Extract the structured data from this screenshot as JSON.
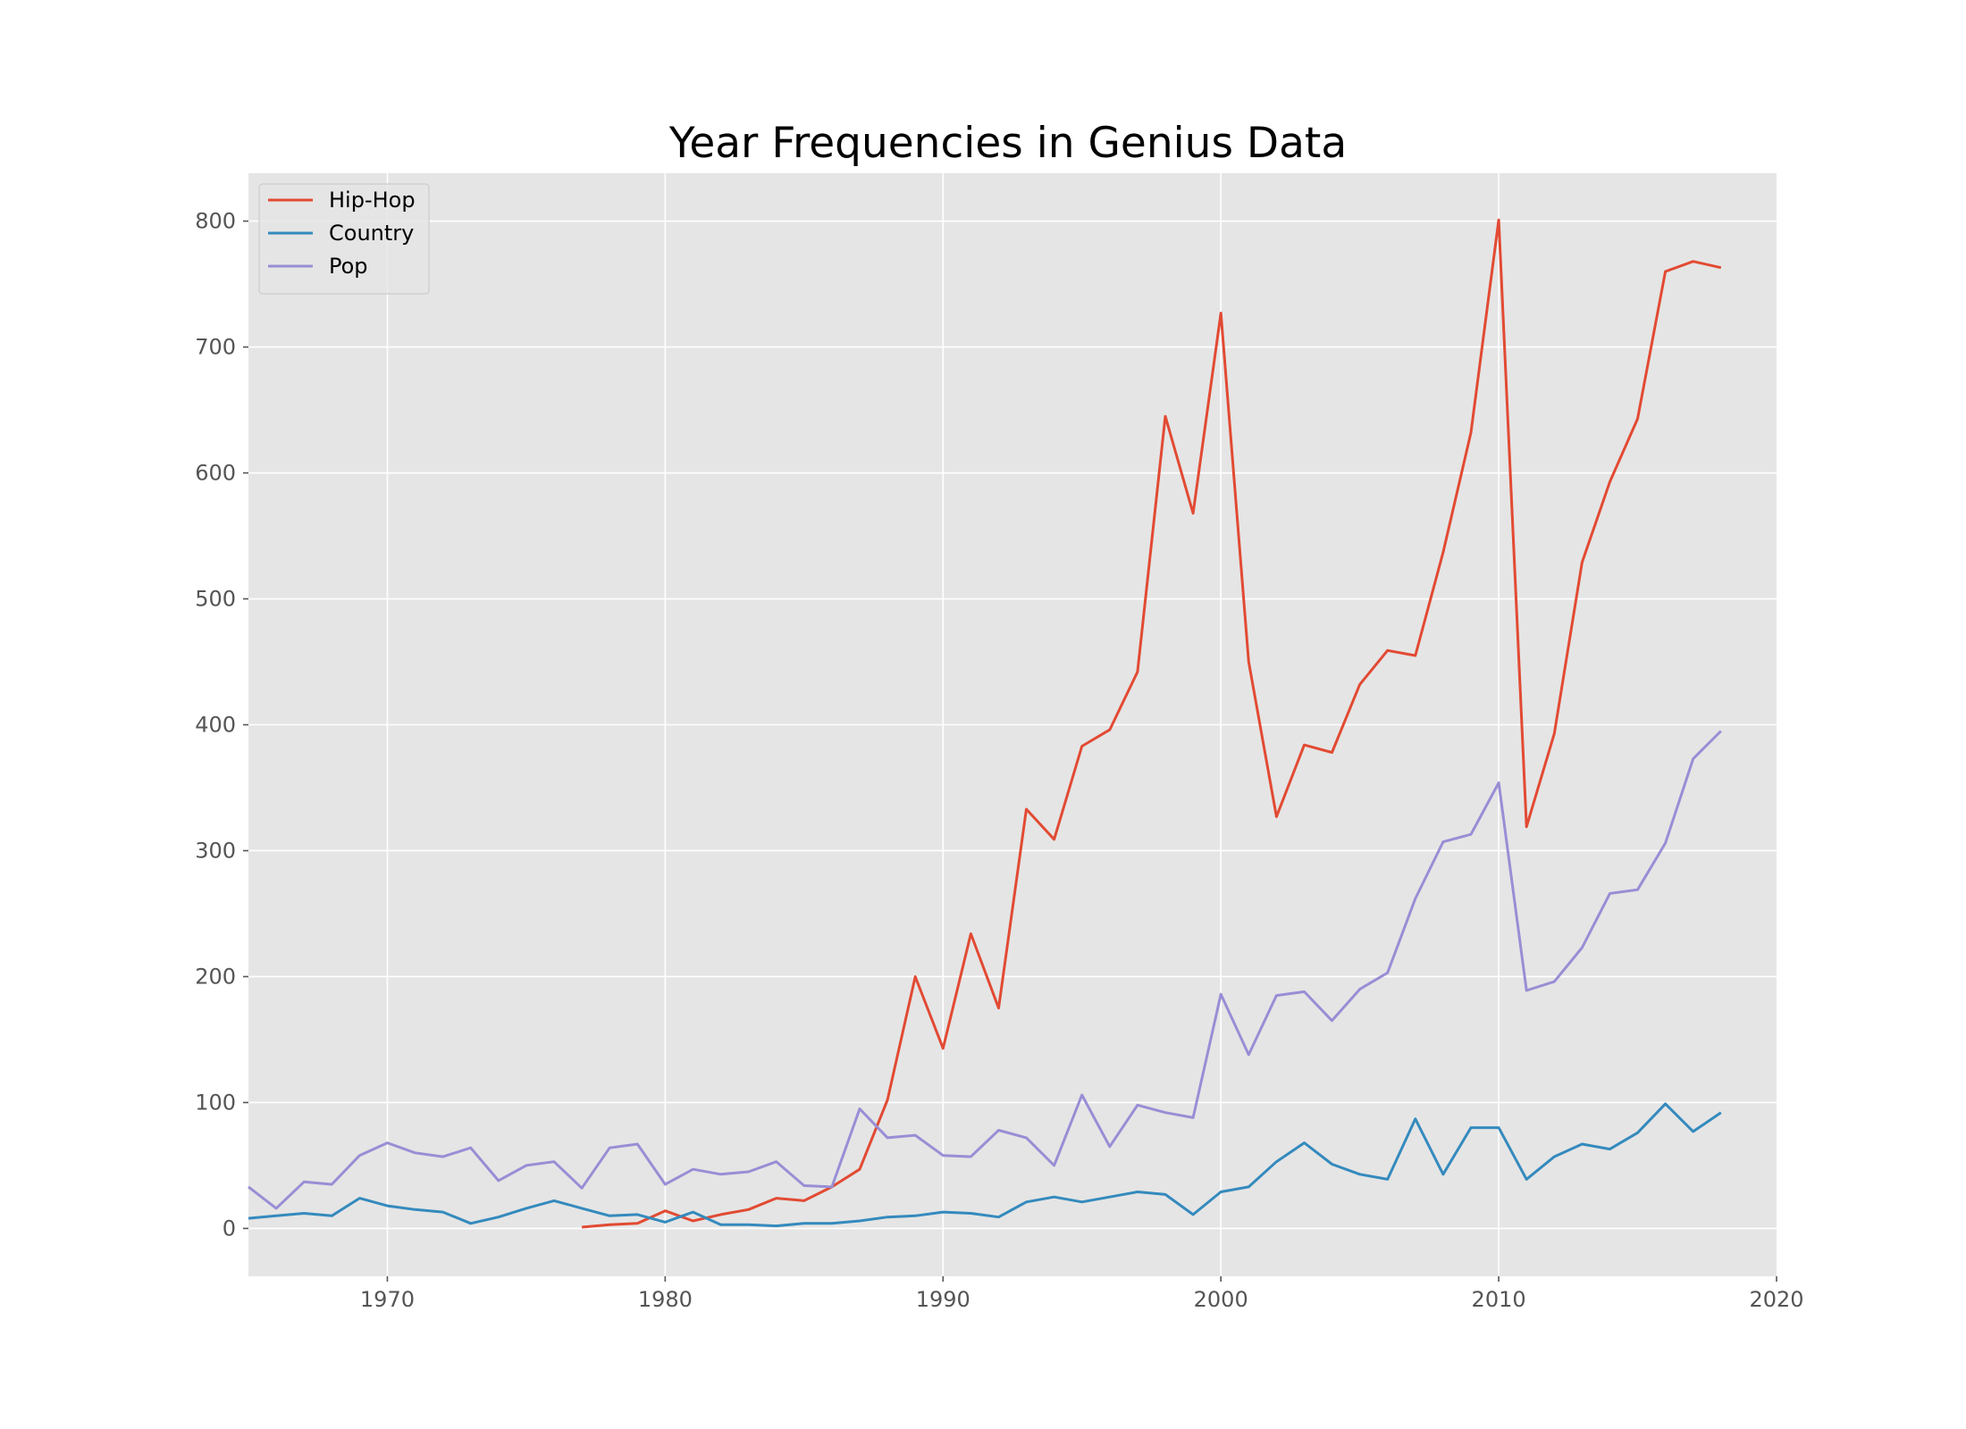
{
  "chart_data": {
    "type": "line",
    "title": "Year Frequencies in Genius Data",
    "xlabel": "",
    "ylabel": "",
    "xlim": [
      1965,
      2020
    ],
    "ylim": [
      -38,
      838
    ],
    "x_ticks": [
      1970,
      1980,
      1990,
      2000,
      2010,
      2020
    ],
    "y_ticks": [
      0,
      100,
      200,
      300,
      400,
      500,
      600,
      700,
      800
    ],
    "grid": true,
    "legend_position": "top-left",
    "series": [
      {
        "name": "Hip-Hop",
        "color": "#E24A33",
        "x": [
          1977,
          1978,
          1979,
          1980,
          1981,
          1982,
          1983,
          1984,
          1985,
          1986,
          1987,
          1988,
          1989,
          1990,
          1991,
          1992,
          1993,
          1994,
          1995,
          1996,
          1997,
          1998,
          1999,
          2000,
          2001,
          2002,
          2003,
          2004,
          2005,
          2006,
          2007,
          2008,
          2009,
          2010,
          2011,
          2012,
          2013,
          2014,
          2015,
          2016,
          2017,
          2018
        ],
        "y": [
          1,
          3,
          4,
          14,
          6,
          11,
          15,
          24,
          22,
          33,
          47,
          102,
          200,
          143,
          234,
          175,
          333,
          309,
          383,
          396,
          442,
          645,
          568,
          727,
          450,
          327,
          384,
          378,
          432,
          459,
          455,
          537,
          632,
          801,
          319,
          393,
          529,
          593,
          643,
          760,
          768,
          763
        ]
      },
      {
        "name": "Country",
        "color": "#348ABD",
        "x": [
          1965,
          1966,
          1967,
          1968,
          1969,
          1970,
          1971,
          1972,
          1973,
          1974,
          1975,
          1976,
          1977,
          1978,
          1979,
          1980,
          1981,
          1982,
          1983,
          1984,
          1985,
          1986,
          1987,
          1988,
          1989,
          1990,
          1991,
          1992,
          1993,
          1994,
          1995,
          1996,
          1997,
          1998,
          1999,
          2000,
          2001,
          2002,
          2003,
          2004,
          2005,
          2006,
          2007,
          2008,
          2009,
          2010,
          2011,
          2012,
          2013,
          2014,
          2015,
          2016,
          2017,
          2018
        ],
        "y": [
          8,
          10,
          12,
          10,
          24,
          18,
          15,
          13,
          4,
          9,
          16,
          22,
          16,
          10,
          11,
          5,
          13,
          3,
          3,
          2,
          4,
          4,
          6,
          9,
          10,
          13,
          12,
          9,
          21,
          25,
          21,
          25,
          29,
          27,
          11,
          29,
          33,
          53,
          68,
          51,
          43,
          39,
          87,
          43,
          80,
          80,
          39,
          57,
          67,
          63,
          76,
          99,
          77,
          92
        ]
      },
      {
        "name": "Pop",
        "color": "#988ED5",
        "x": [
          1965,
          1966,
          1967,
          1968,
          1969,
          1970,
          1971,
          1972,
          1973,
          1974,
          1975,
          1976,
          1977,
          1978,
          1979,
          1980,
          1981,
          1982,
          1983,
          1984,
          1985,
          1986,
          1987,
          1988,
          1989,
          1990,
          1991,
          1992,
          1993,
          1994,
          1995,
          1996,
          1997,
          1998,
          1999,
          2000,
          2001,
          2002,
          2003,
          2004,
          2005,
          2006,
          2007,
          2008,
          2009,
          2010,
          2011,
          2012,
          2013,
          2014,
          2015,
          2016,
          2017,
          2018
        ],
        "y": [
          33,
          16,
          37,
          35,
          58,
          68,
          60,
          57,
          64,
          38,
          50,
          53,
          32,
          64,
          67,
          35,
          47,
          43,
          45,
          53,
          34,
          33,
          95,
          72,
          74,
          58,
          57,
          78,
          72,
          50,
          106,
          65,
          98,
          92,
          88,
          186,
          138,
          185,
          188,
          165,
          190,
          203,
          262,
          307,
          313,
          354,
          189,
          196,
          223,
          266,
          269,
          306,
          373,
          395
        ]
      }
    ]
  }
}
